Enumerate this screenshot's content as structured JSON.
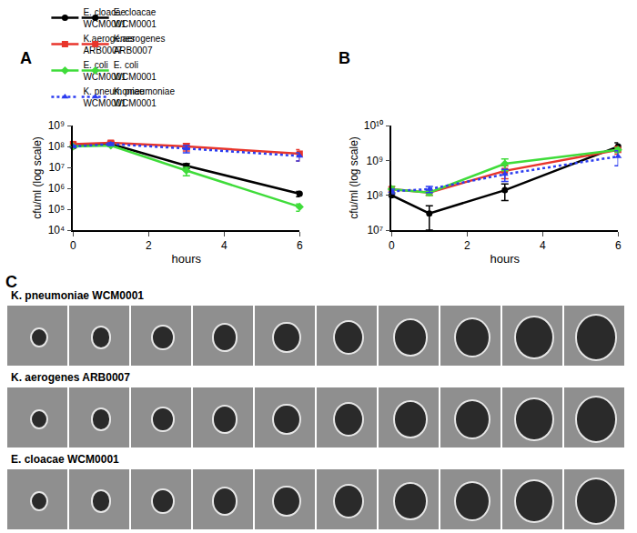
{
  "chart_data": [
    {
      "type": "line",
      "title": "A",
      "x_label": "hours",
      "y_label": "cfu/ml (log scale)",
      "log": "y",
      "grid": false,
      "legend": "top",
      "xlim": [
        0,
        6
      ],
      "xticks": [
        0,
        2,
        4,
        6
      ],
      "ylim": [
        10000,
        1000000000
      ],
      "yticks": [
        {
          "value": 10000,
          "label": "10⁴"
        },
        {
          "value": 100000,
          "label": "10⁵"
        },
        {
          "value": 1000000,
          "label": "10⁶"
        },
        {
          "value": 10000000,
          "label": "10⁷"
        },
        {
          "value": 100000000,
          "label": "10⁸"
        },
        {
          "value": 1000000000,
          "label": "10⁹"
        }
      ],
      "x": [
        0,
        1,
        3,
        6
      ],
      "series": [
        {
          "name": "E. cloacae\nWCM0001",
          "color": "#000000",
          "marker": "circle",
          "line_style": "solid",
          "values": [
            100000000,
            130000000,
            12000000,
            550000
          ],
          "errors": [
            15000000,
            20000000,
            3000000,
            150000
          ]
        },
        {
          "name": "K.aerogenes\nARB0007",
          "color": "#e8352b",
          "marker": "square",
          "line_style": "solid",
          "values": [
            130000000,
            150000000,
            100000000,
            45000000
          ],
          "errors": [
            30000000,
            30000000,
            40000000,
            25000000
          ]
        },
        {
          "name": "E. coli\nWCM0001",
          "color": "#3fdc3a",
          "marker": "diamond",
          "line_style": "solid",
          "values": [
            100000000,
            110000000,
            7000000,
            130000
          ],
          "errors": [
            10000000,
            10000000,
            3000000,
            50000
          ]
        },
        {
          "name": "K. pneumoniae\nWCM0001",
          "color": "#2b3cf0",
          "marker": "triangle-up",
          "line_style": "dotted",
          "values": [
            100000000,
            130000000,
            80000000,
            35000000
          ],
          "errors": [
            10000000,
            20000000,
            30000000,
            15000000
          ]
        }
      ]
    },
    {
      "type": "line",
      "title": "B",
      "x_label": "hours",
      "y_label": "cfu/ml (log scale)",
      "log": "y",
      "grid": false,
      "legend": "top",
      "xlim": [
        0,
        6
      ],
      "xticks": [
        0,
        2,
        4,
        6
      ],
      "ylim": [
        10000000,
        10000000000
      ],
      "yticks": [
        {
          "value": 10000000,
          "label": "10⁷"
        },
        {
          "value": 100000000,
          "label": "10⁸"
        },
        {
          "value": 1000000000,
          "label": "10⁹"
        },
        {
          "value": 10000000000,
          "label": "10¹⁰"
        }
      ],
      "x": [
        0,
        1,
        3,
        6
      ],
      "series": [
        {
          "name": "E. cloacae\nWCM0001",
          "color": "#000000",
          "marker": "circle",
          "line_style": "solid",
          "values": [
            100000000,
            30000000,
            140000000,
            2500000000
          ],
          "errors": [
            10000000,
            20000000,
            70000000,
            700000000
          ]
        },
        {
          "name": "K.aerogenes\nARB0007",
          "color": "#e8352b",
          "marker": "square",
          "line_style": "solid",
          "values": [
            150000000,
            120000000,
            500000000,
            2000000000
          ],
          "errors": [
            30000000,
            20000000,
            200000000,
            500000000
          ]
        },
        {
          "name": "E. coli\nWCM0001",
          "color": "#3fdc3a",
          "marker": "diamond",
          "line_style": "solid",
          "values": [
            150000000,
            120000000,
            800000000,
            2000000000
          ],
          "errors": [
            30000000,
            20000000,
            300000000,
            300000000
          ]
        },
        {
          "name": "K. pneumoniae\nWCM0001",
          "color": "#2b3cf0",
          "marker": "triangle-up",
          "line_style": "dotted",
          "values": [
            130000000,
            150000000,
            400000000,
            1300000000
          ],
          "errors": [
            20000000,
            30000000,
            150000000,
            600000000
          ]
        }
      ]
    }
  ],
  "image_panel": {
    "title": "C",
    "rows": [
      "K. pneumoniae WCM0001",
      "K. aerogenes ARB0007",
      "E. cloacae WCM0001"
    ]
  }
}
